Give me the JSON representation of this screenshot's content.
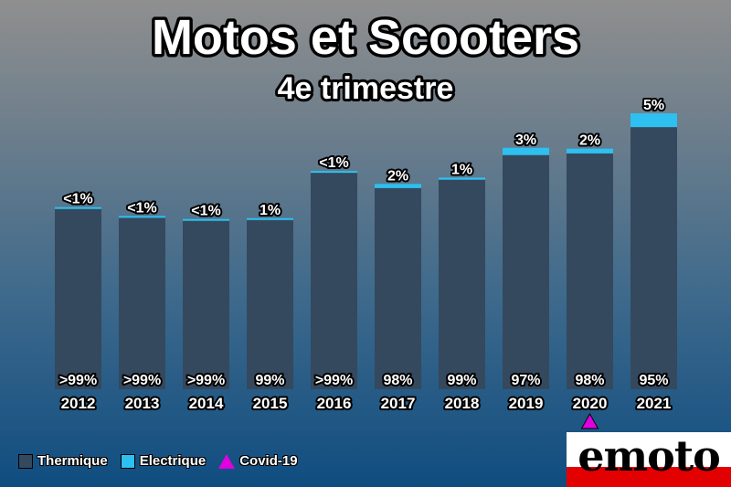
{
  "chart_data": {
    "type": "bar",
    "stacked": true,
    "title": "Motos et Scooters",
    "subtitle": "4e trimestre",
    "categories": [
      "2012",
      "2013",
      "2014",
      "2015",
      "2016",
      "2017",
      "2018",
      "2019",
      "2020",
      "2021"
    ],
    "series": [
      {
        "name": "Thermique",
        "color": "#34495e",
        "labels": [
          ">99%",
          ">99%",
          ">99%",
          "99%",
          ">99%",
          "98%",
          "99%",
          "97%",
          "98%",
          "95%"
        ]
      },
      {
        "name": "Electrique",
        "color": "#2ec0f0",
        "labels": [
          "<1%",
          "<1%",
          "<1%",
          "1%",
          "<1%",
          "2%",
          "1%",
          "3%",
          "2%",
          "5%"
        ]
      }
    ],
    "totals_relative": [
      0.66,
      0.628,
      0.617,
      0.62,
      0.791,
      0.744,
      0.767,
      0.875,
      0.872,
      1.0
    ],
    "electric_share": [
      0.005,
      0.005,
      0.005,
      0.01,
      0.005,
      0.02,
      0.01,
      0.03,
      0.02,
      0.05
    ],
    "marker": {
      "category": "2020",
      "name": "Covid-19",
      "color": "#e000e0"
    },
    "legend_position": "bottom-left",
    "grid": false
  },
  "legend": [
    {
      "label": "Thermique",
      "color": "#34495e",
      "shape": "square"
    },
    {
      "label": "Electrique",
      "color": "#2ec0f0",
      "shape": "square"
    },
    {
      "label": "Covid-19",
      "color": "#e000e0",
      "shape": "triangle"
    }
  ],
  "logo": {
    "text": "emoto"
  }
}
